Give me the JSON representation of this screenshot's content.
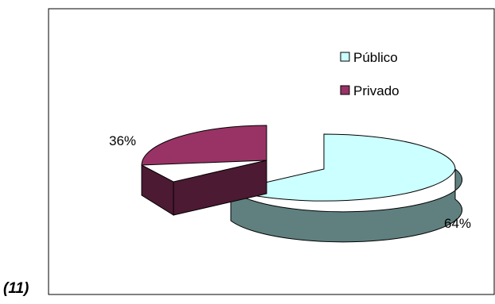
{
  "figure_number": "(11)",
  "chart_data": {
    "type": "pie",
    "three_d": true,
    "exploded": true,
    "legend_position": "top-right",
    "slices": [
      {
        "name": "Público",
        "value": 64,
        "label": "64%",
        "top_color": "#ccffff",
        "side_color": "#5f807f"
      },
      {
        "name": "Privado",
        "value": 36,
        "label": "36%",
        "top_color": "#993366",
        "side_color": "#4c1a33"
      }
    ]
  }
}
